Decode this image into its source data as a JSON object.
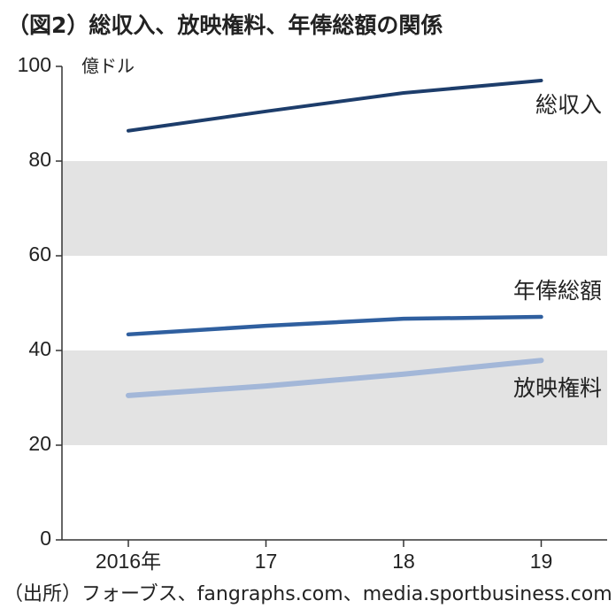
{
  "chart_data": {
    "type": "line",
    "title": "（図2）総収入、放映権料、年俸総額の関係",
    "y_label": "億ドル",
    "source": "（出所）フォーブス、fangraphs.com、media.sportbusiness.com",
    "categories": [
      "2016年",
      "17",
      "18",
      "19"
    ],
    "series": [
      {
        "name": "総収入",
        "color": "#1d3d6b",
        "values": [
          86.4,
          90.5,
          94.4,
          97.0
        ]
      },
      {
        "name": "年俸総額",
        "color": "#2f5f9f",
        "values": [
          43.4,
          45.2,
          46.7,
          47.1
        ]
      },
      {
        "name": "放映権料",
        "color": "#a3b7d8",
        "values": [
          30.5,
          32.5,
          35.0,
          37.9
        ]
      }
    ],
    "ylim": [
      0,
      100
    ],
    "yticks": [
      0,
      20,
      40,
      60,
      80,
      100
    ]
  }
}
